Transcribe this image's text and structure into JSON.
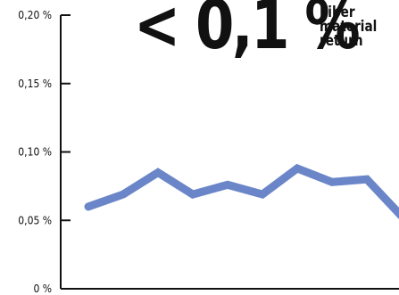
{
  "headline": {
    "value": "< 0,1 %",
    "caption": "Fiber\nmaterial\nreturn"
  },
  "chart_data": {
    "type": "line",
    "title": "",
    "xlabel": "",
    "ylabel": "",
    "ylim": [
      0,
      0.2
    ],
    "yticks": [
      {
        "value": 0.2,
        "label": "0,20 %"
      },
      {
        "value": 0.15,
        "label": "0,15 %"
      },
      {
        "value": 0.1,
        "label": "0,10 %"
      },
      {
        "value": 0.05,
        "label": "0,05 %"
      },
      {
        "value": 0,
        "label": "0 %"
      }
    ],
    "x": [
      1,
      2,
      3,
      4,
      5,
      6,
      7,
      8,
      9,
      10
    ],
    "series": [
      {
        "values": [
          0.06,
          0.069,
          0.085,
          0.069,
          0.076,
          0.069,
          0.088,
          0.078,
          0.08,
          0.053
        ]
      }
    ],
    "grid": false,
    "colors": {
      "line": "#6b86c8",
      "axis": "#111111",
      "text": "#111111"
    }
  }
}
